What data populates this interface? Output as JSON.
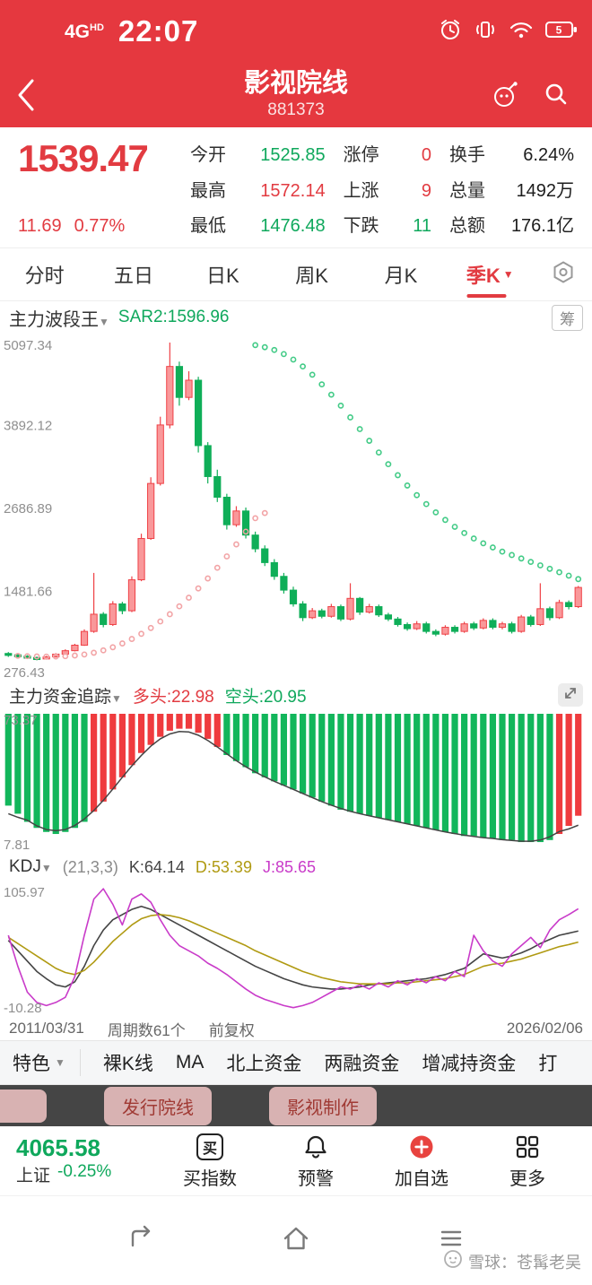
{
  "status_bar": {
    "network": "4G",
    "network_sub": "HD",
    "time": "22:07",
    "battery": "5"
  },
  "header": {
    "title": "影视院线",
    "code": "881373"
  },
  "quote": {
    "price": "1539.47",
    "change": "11.69",
    "change_pct": "0.77%",
    "stats": [
      {
        "label": "今开",
        "value": "1525.85",
        "color": "green"
      },
      {
        "label": "涨停",
        "value": "0",
        "color": "red"
      },
      {
        "label": "换手",
        "value": "6.24%",
        "color": "dark"
      },
      {
        "label": "最高",
        "value": "1572.14",
        "color": "red"
      },
      {
        "label": "上涨",
        "value": "9",
        "color": "red"
      },
      {
        "label": "总量",
        "value": "1492万",
        "color": "dark"
      },
      {
        "label": "最低",
        "value": "1476.48",
        "color": "green"
      },
      {
        "label": "下跌",
        "value": "11",
        "color": "green"
      },
      {
        "label": "总额",
        "value": "176.1亿",
        "color": "dark"
      }
    ]
  },
  "period_tabs": {
    "items": [
      "分时",
      "五日",
      "日K",
      "周K",
      "月K",
      "季K"
    ],
    "active": "季K"
  },
  "chart1_header": {
    "indicator": "主力波段王",
    "sar_label": "SAR2:1596.96",
    "chip_badge": "筹"
  },
  "panel2_header": {
    "indicator": "主力资金追踪",
    "long_label": "多头:22.98",
    "short_label": "空头:20.95"
  },
  "panel3_header": {
    "indicator": "KDJ",
    "params": "(21,3,3)",
    "k": "K:64.14",
    "d": "D:53.39",
    "j": "J:85.65"
  },
  "x_axis": {
    "start": "2011/03/31",
    "periods": "周期数61个",
    "adjust": "前复权",
    "end": "2026/02/06"
  },
  "feature_tabs": {
    "items": [
      "特色",
      "裸K线",
      "MA",
      "北上资金",
      "两融资金",
      "增减持资金",
      "打"
    ]
  },
  "sector_pills": [
    "发行院线",
    "影视制作"
  ],
  "bottom_bar": {
    "index_value": "4065.58",
    "index_name": "上证",
    "index_change": "-0.25%",
    "actions": [
      "买指数",
      "预警",
      "加自选",
      "更多"
    ]
  },
  "watermark": "雪球：苍髯老吴",
  "colors": {
    "theme_red": "#e5383f",
    "up_red": "#e23b41",
    "down_green": "#0fa85c"
  },
  "chart_data": [
    {
      "type": "candlestick",
      "title": "主力波段王 季K",
      "ymin": 276.43,
      "ymax": 5097.34,
      "y_ticks": [
        5097.34,
        3892.12,
        2686.89,
        1481.66,
        276.43
      ],
      "x_start": "2011/03/31",
      "x_end": "2026/02/06",
      "periods": 61,
      "up_stroke": "#ef4146",
      "up_fill": "#f9989a",
      "down_color": "#0fae58",
      "sar_red_color": "#f2a4a6",
      "sar_green_color": "#43cb87",
      "candles": [
        [
          580,
          600,
          530,
          560
        ],
        [
          560,
          575,
          525,
          540
        ],
        [
          540,
          555,
          505,
          520
        ],
        [
          520,
          535,
          480,
          500
        ],
        [
          500,
          545,
          490,
          530
        ],
        [
          530,
          585,
          520,
          570
        ],
        [
          570,
          640,
          560,
          620
        ],
        [
          620,
          720,
          610,
          700
        ],
        [
          700,
          930,
          690,
          900
        ],
        [
          900,
          1750,
          880,
          1150
        ],
        [
          1150,
          1180,
          960,
          1000
        ],
        [
          1000,
          1340,
          980,
          1300
        ],
        [
          1300,
          1330,
          1150,
          1200
        ],
        [
          1200,
          1700,
          1180,
          1650
        ],
        [
          1650,
          2320,
          1630,
          2250
        ],
        [
          2250,
          3140,
          2230,
          3050
        ],
        [
          3050,
          4020,
          3020,
          3900
        ],
        [
          3900,
          5097,
          3850,
          4750
        ],
        [
          4750,
          4820,
          4180,
          4300
        ],
        [
          4300,
          4680,
          4260,
          4550
        ],
        [
          4550,
          4600,
          3500,
          3600
        ],
        [
          3600,
          3650,
          3050,
          3150
        ],
        [
          3150,
          3250,
          2780,
          2850
        ],
        [
          2850,
          2900,
          2380,
          2450
        ],
        [
          2450,
          2720,
          2420,
          2650
        ],
        [
          2650,
          2700,
          2250,
          2300
        ],
        [
          2300,
          2350,
          2050,
          2100
        ],
        [
          2100,
          2150,
          1850,
          1900
        ],
        [
          1900,
          1950,
          1650,
          1700
        ],
        [
          1700,
          1750,
          1450,
          1500
        ],
        [
          1500,
          1550,
          1260,
          1300
        ],
        [
          1300,
          1340,
          1050,
          1100
        ],
        [
          1100,
          1240,
          1080,
          1200
        ],
        [
          1200,
          1230,
          1090,
          1120
        ],
        [
          1120,
          1300,
          1100,
          1260
        ],
        [
          1260,
          1290,
          1050,
          1080
        ],
        [
          1080,
          1600,
          1060,
          1380
        ],
        [
          1380,
          1400,
          1140,
          1180
        ],
        [
          1180,
          1300,
          1160,
          1260
        ],
        [
          1260,
          1290,
          1110,
          1140
        ],
        [
          1140,
          1170,
          1050,
          1080
        ],
        [
          1080,
          1110,
          970,
          1000
        ],
        [
          1000,
          1030,
          910,
          940
        ],
        [
          940,
          1050,
          920,
          1010
        ],
        [
          1010,
          1040,
          870,
          900
        ],
        [
          900,
          930,
          830,
          860
        ],
        [
          860,
          990,
          840,
          960
        ],
        [
          960,
          990,
          870,
          900
        ],
        [
          900,
          1040,
          880,
          1010
        ],
        [
          1010,
          1040,
          920,
          950
        ],
        [
          950,
          1090,
          930,
          1060
        ],
        [
          1060,
          1090,
          930,
          960
        ],
        [
          960,
          1040,
          930,
          1010
        ],
        [
          1010,
          1040,
          870,
          900
        ],
        [
          900,
          1140,
          880,
          1110
        ],
        [
          1110,
          1140,
          970,
          1000
        ],
        [
          1000,
          1600,
          980,
          1230
        ],
        [
          1230,
          1260,
          1060,
          1100
        ],
        [
          1100,
          1360,
          1080,
          1320
        ],
        [
          1320,
          1350,
          1220,
          1260
        ],
        [
          1260,
          1560,
          1240,
          1539
        ]
      ],
      "sar_red": {
        "start": 1,
        "values": [
          545,
          540,
          536,
          534,
          535,
          540,
          550,
          565,
          590,
          625,
          670,
          725,
          790,
          865,
          950,
          1045,
          1150,
          1265,
          1390,
          1525,
          1670,
          1825,
          1990,
          2165,
          2350,
          2545,
          2620
        ]
      },
      "sar_green": {
        "start": 26,
        "values": [
          5060,
          5030,
          4990,
          4930,
          4850,
          4750,
          4630,
          4490,
          4340,
          4180,
          4010,
          3840,
          3670,
          3500,
          3330,
          3170,
          3020,
          2880,
          2750,
          2630,
          2520,
          2420,
          2330,
          2250,
          2180,
          2120,
          2060,
          2010,
          1960,
          1910,
          1860,
          1810,
          1760,
          1710,
          1660
        ]
      },
      "sar2_current": 1596.96
    },
    {
      "type": "bar",
      "title": "主力资金追踪",
      "long_value": 22.98,
      "short_value": 20.95,
      "ymin": 7.81,
      "ymax": 73.37,
      "y_ticks": [
        73.37,
        7.81
      ],
      "bar_red": "#ef3b3e",
      "bar_green": "#12b65b",
      "line_color": "#444444",
      "values": [
        28,
        24,
        20,
        17,
        15,
        14,
        15,
        17,
        20,
        25,
        30,
        36,
        42,
        48,
        54,
        58,
        62,
        65,
        66,
        66,
        64,
        61,
        57,
        53,
        50,
        47,
        44,
        42,
        40,
        38,
        36,
        34,
        32,
        30,
        28,
        26,
        25,
        24,
        23,
        22,
        21,
        20,
        19,
        18,
        17,
        16,
        15,
        14,
        13,
        13,
        12,
        12,
        11,
        11,
        10,
        10,
        10,
        11,
        14,
        18,
        23
      ],
      "bar_colors": "gggggggggrrrrrrrrrrrrrrgggggggggggggggggggggggggggggggggggrrr"
    },
    {
      "type": "line",
      "title": "KDJ",
      "params": [
        21,
        3,
        3
      ],
      "ymin": -10.28,
      "ymax": 105.97,
      "y_ticks": [
        105.97,
        -10.28
      ],
      "series": [
        {
          "name": "K",
          "current": 64.14,
          "color": "#444444",
          "values": [
            55,
            45,
            35,
            25,
            18,
            12,
            10,
            15,
            30,
            50,
            65,
            75,
            80,
            85,
            88,
            85,
            80,
            75,
            70,
            65,
            60,
            55,
            50,
            45,
            40,
            35,
            30,
            26,
            22,
            18,
            15,
            12,
            10,
            9,
            8,
            8,
            9,
            10,
            12,
            13,
            14,
            15,
            16,
            17,
            18,
            20,
            22,
            25,
            28,
            35,
            42,
            40,
            38,
            40,
            43,
            47,
            52,
            56,
            60,
            62,
            64.14
          ]
        },
        {
          "name": "D",
          "current": 53.39,
          "color": "#b09a12",
          "values": [
            58,
            52,
            46,
            40,
            34,
            28,
            24,
            22,
            26,
            34,
            44,
            54,
            62,
            70,
            76,
            79,
            80,
            79,
            77,
            74,
            70,
            66,
            62,
            58,
            54,
            50,
            45,
            41,
            37,
            33,
            29,
            25,
            22,
            19,
            17,
            15,
            14,
            13,
            13,
            13,
            13,
            14,
            14,
            15,
            16,
            17,
            18,
            20,
            22,
            26,
            30,
            32,
            33,
            35,
            37,
            40,
            43,
            46,
            49,
            51,
            53.39
          ]
        },
        {
          "name": "J",
          "current": 85.65,
          "color": "#c93bc9",
          "values": [
            60,
            30,
            5,
            -5,
            -8,
            -5,
            0,
            20,
            60,
            95,
            105,
            90,
            70,
            95,
            100,
            92,
            75,
            60,
            50,
            45,
            40,
            33,
            28,
            22,
            15,
            8,
            2,
            -2,
            -5,
            -8,
            -10,
            -8,
            -5,
            0,
            5,
            10,
            8,
            12,
            8,
            14,
            10,
            16,
            12,
            18,
            14,
            20,
            16,
            25,
            20,
            60,
            45,
            35,
            30,
            42,
            50,
            58,
            48,
            65,
            75,
            80,
            85.65
          ]
        }
      ]
    }
  ]
}
